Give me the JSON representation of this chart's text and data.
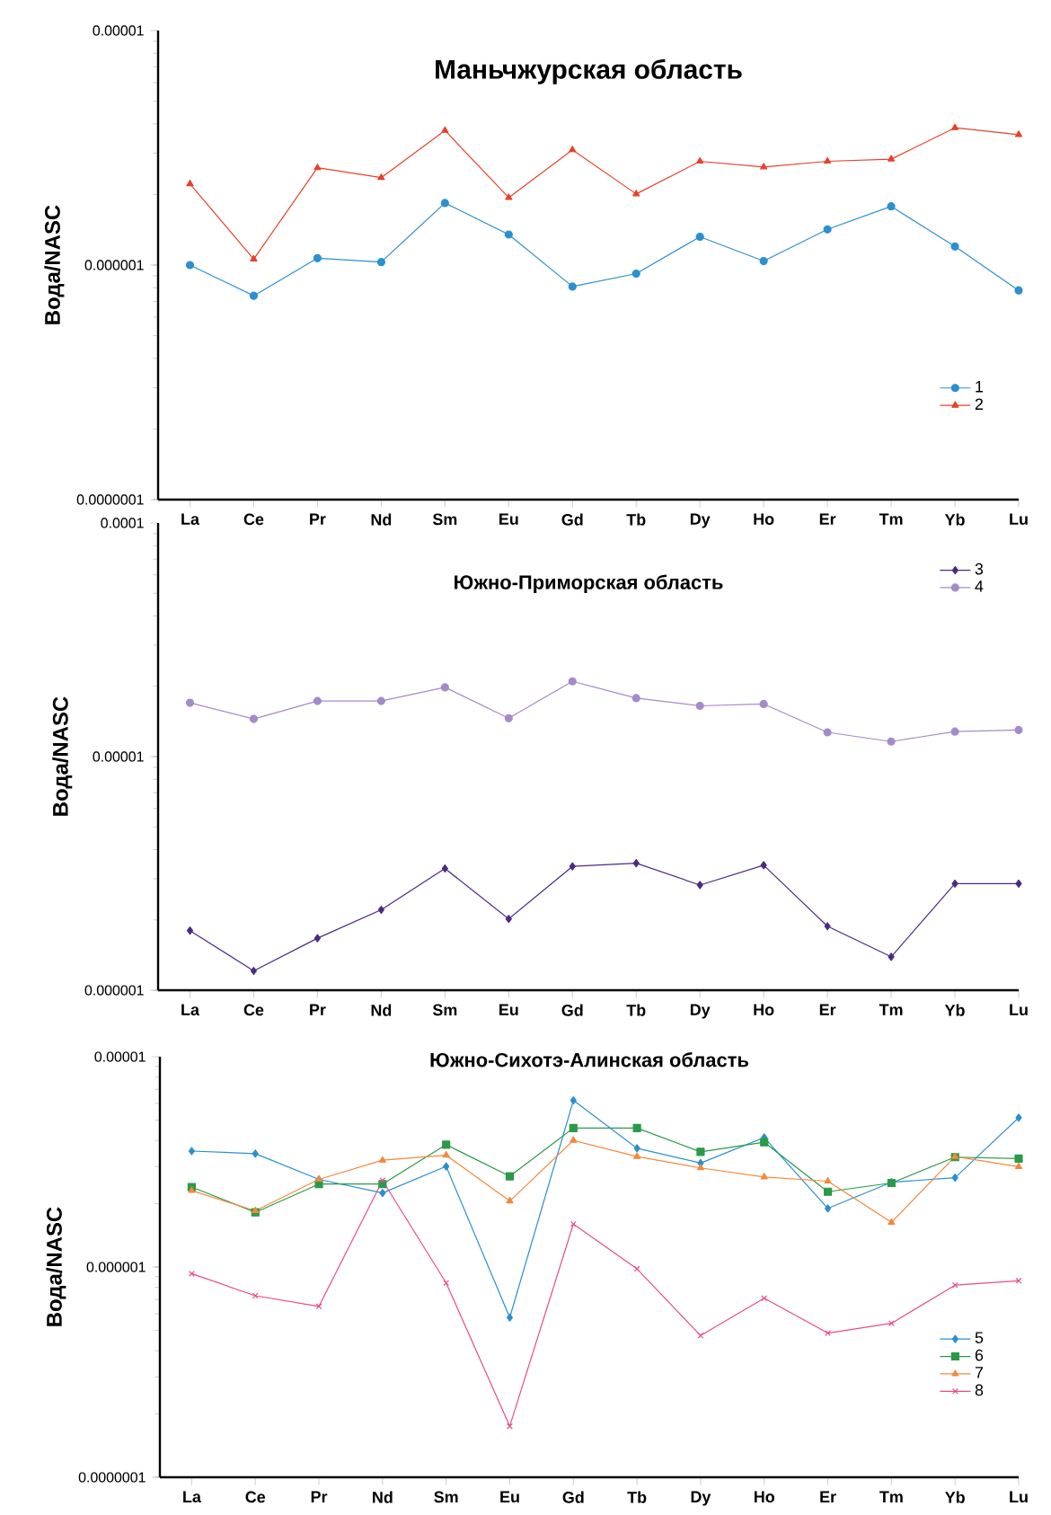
{
  "chart_data": [
    {
      "type": "line",
      "title": "Маньчжурская область",
      "ylabel": "Вода/NASC",
      "log": "y",
      "grid": false,
      "legend": "bottom right",
      "categories": [
        "La",
        "Ce",
        "Pr",
        "Nd",
        "Sm",
        "Eu",
        "Gd",
        "Tb",
        "Dy",
        "Ho",
        "Er",
        "Tm",
        "Yb",
        "Lu"
      ],
      "ylim": [
        1e-07,
        1e-05
      ],
      "yticks": [
        {
          "value": 1e-07,
          "label": "0.0000001"
        },
        {
          "value": 1e-06,
          "label": "0.000001"
        },
        {
          "value": 1e-05,
          "label": "0.00001"
        }
      ],
      "series": [
        {
          "name": "1",
          "color": "#2b8fd0",
          "marker": "circle",
          "values": [
            1e-06,
            7.4e-07,
            1.07e-06,
            1.03e-06,
            1.84e-06,
            1.35e-06,
            8.1e-07,
            9.2e-07,
            1.32e-06,
            1.04e-06,
            1.42e-06,
            1.78e-06,
            1.2e-06,
            7.8e-07
          ]
        },
        {
          "name": "2",
          "color": "#e8402a",
          "marker": "triangle",
          "values": [
            2.22e-06,
            1.06e-06,
            2.6e-06,
            2.36e-06,
            3.75e-06,
            1.94e-06,
            3.1e-06,
            2.01e-06,
            2.77e-06,
            2.62e-06,
            2.77e-06,
            2.83e-06,
            3.85e-06,
            3.6e-06
          ]
        }
      ]
    },
    {
      "type": "line",
      "title": "Южно-Приморская область",
      "ylabel": "Вода/NASC",
      "log": "y",
      "grid": false,
      "legend": "top right",
      "categories": [
        "La",
        "Ce",
        "Pr",
        "Nd",
        "Sm",
        "Eu",
        "Gd",
        "Tb",
        "Dy",
        "Ho",
        "Er",
        "Tm",
        "Yb",
        "Lu"
      ],
      "ylim": [
        1e-06,
        0.0001
      ],
      "yticks": [
        {
          "value": 1e-06,
          "label": "0.000001"
        },
        {
          "value": 1e-05,
          "label": "0.00001"
        },
        {
          "value": 0.0001,
          "label": "0.0001"
        }
      ],
      "series": [
        {
          "name": "3",
          "color": "#4b2a85",
          "marker": "diamond",
          "values": [
            1.8e-06,
            1.21e-06,
            1.67e-06,
            2.21e-06,
            3.32e-06,
            2.02e-06,
            3.39e-06,
            3.5e-06,
            2.82e-06,
            3.43e-06,
            1.88e-06,
            1.39e-06,
            2.86e-06,
            2.86e-06
          ]
        },
        {
          "name": "4",
          "color": "#a58ac9",
          "marker": "circle",
          "values": [
            1.7e-05,
            1.45e-05,
            1.73e-05,
            1.73e-05,
            1.98e-05,
            1.46e-05,
            2.1e-05,
            1.78e-05,
            1.65e-05,
            1.68e-05,
            1.27e-05,
            1.16e-05,
            1.28e-05,
            1.3e-05
          ]
        }
      ]
    },
    {
      "type": "line",
      "title": "Южно-Сихотэ-Алинская область",
      "ylabel": "Вода/NASC",
      "log": "y",
      "grid": false,
      "legend": "bottom right",
      "categories": [
        "La",
        "Ce",
        "Pr",
        "Nd",
        "Sm",
        "Eu",
        "Gd",
        "Tb",
        "Dy",
        "Ho",
        "Er",
        "Tm",
        "Yb",
        "Lu"
      ],
      "ylim": [
        1e-07,
        1e-05
      ],
      "yticks": [
        {
          "value": 1e-07,
          "label": "0.0000001"
        },
        {
          "value": 1e-06,
          "label": "0.000001"
        },
        {
          "value": 1e-05,
          "label": "0.00001"
        }
      ],
      "series": [
        {
          "name": "5",
          "color": "#2a8fd0",
          "marker": "diamond",
          "values": [
            3.56e-06,
            3.46e-06,
            2.61e-06,
            2.25e-06,
            3.01e-06,
            5.75e-07,
            6.2e-06,
            3.67e-06,
            3.12e-06,
            4.13e-06,
            1.9e-06,
            2.53e-06,
            2.66e-06,
            5.13e-06
          ]
        },
        {
          "name": "6",
          "color": "#2a9a48",
          "marker": "square",
          "values": [
            2.4e-06,
            1.82e-06,
            2.48e-06,
            2.48e-06,
            3.82e-06,
            2.7e-06,
            4.58e-06,
            4.58e-06,
            3.53e-06,
            3.92e-06,
            2.28e-06,
            2.51e-06,
            3.33e-06,
            3.28e-06
          ]
        },
        {
          "name": "7",
          "color": "#f4883a",
          "marker": "triangle",
          "values": [
            2.31e-06,
            1.85e-06,
            2.61e-06,
            3.22e-06,
            3.4e-06,
            2.06e-06,
            4e-06,
            3.35e-06,
            2.96e-06,
            2.68e-06,
            2.56e-06,
            1.63e-06,
            3.35e-06,
            3e-06
          ]
        },
        {
          "name": "8",
          "color": "#ea4a8a",
          "marker": "cross",
          "values": [
            9.3e-07,
            7.3e-07,
            6.5e-07,
            2.58e-06,
            8.4e-07,
            1.75e-07,
            1.6e-06,
            9.8e-07,
            4.72e-07,
            7.1e-07,
            4.85e-07,
            5.4e-07,
            8.2e-07,
            8.6e-07
          ]
        }
      ]
    }
  ]
}
